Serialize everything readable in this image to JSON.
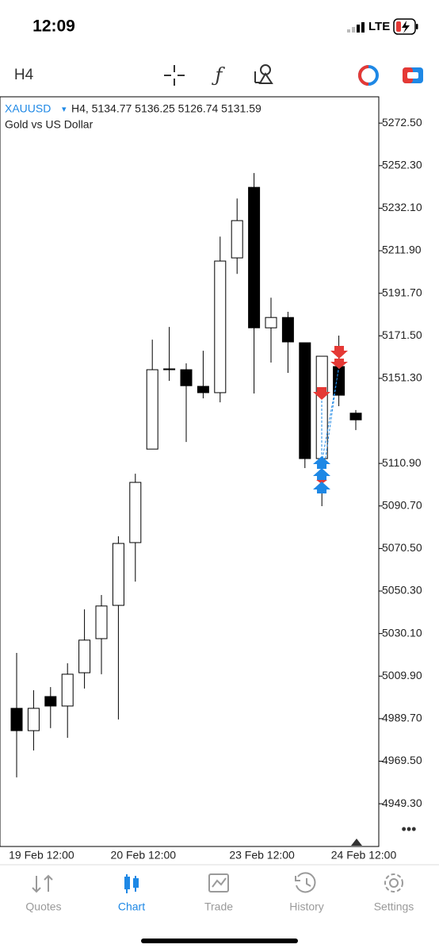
{
  "ui": {
    "status_time": "12:09",
    "network": "LTE",
    "timeframe": "H4",
    "symbol": "XAUUSD",
    "symbol_menu": "▾",
    "quote_line": "H4, 5134.77 5136.25 5126.74 5131.59",
    "description": "Gold vs US Dollar",
    "more": "•••",
    "tabs": [
      "Quotes",
      "Chart",
      "Trade",
      "History",
      "Settings"
    ],
    "active_tab": 1
  },
  "chart_data": {
    "type": "candlestick",
    "categories": [
      null,
      "19 Feb 12:00",
      null,
      null,
      null,
      null,
      null,
      "20 Feb 12:00",
      null,
      null,
      null,
      null,
      null,
      null,
      "23 Feb 12:00",
      null,
      null,
      null,
      null,
      null,
      "24 Feb 12:00"
    ],
    "open": [
      4994.6,
      4984.0,
      5000.2,
      4995.7,
      5011.5,
      5027.7,
      5043.5,
      5073.3,
      5117.7,
      5155.8,
      5155.4,
      5147.5,
      5144.5,
      5208.5,
      5242.0,
      5175.3,
      5180.2,
      5168.2,
      5113.2,
      5156.9,
      5134.77
    ],
    "high": [
      5020.9,
      5003.2,
      5004.7,
      5016.0,
      5041.6,
      5048.4,
      5076.3,
      5106.0,
      5169.7,
      5175.7,
      5158.4,
      5164.4,
      5218.6,
      5236.7,
      5248.8,
      5189.6,
      5182.9,
      5168.2,
      5161.8,
      5171.6,
      5136.25
    ],
    "low": [
      4961.8,
      4974.6,
      4985.2,
      4980.6,
      5004.0,
      5010.8,
      4989.3,
      5054.8,
      5117.7,
      5150.1,
      5121.1,
      5141.8,
      5139.9,
      5200.9,
      5144.1,
      5158.8,
      5153.9,
      5108.7,
      5090.6,
      5138.1,
      5126.74
    ],
    "close": [
      4984.0,
      4994.6,
      4995.7,
      5010.8,
      5027.0,
      5043.2,
      5072.9,
      5101.9,
      5155.4,
      5155.4,
      5147.8,
      5144.5,
      5207.0,
      5226.2,
      5175.3,
      5180.2,
      5168.6,
      5113.2,
      5161.8,
      5143.3,
      5131.59
    ],
    "up_color": "#ffffff",
    "down_color": "#000000",
    "ylim": [
      4929,
      5285
    ],
    "yticks": [
      {
        "value": 5272.5,
        "label": "5272.50"
      },
      {
        "value": 5252.3,
        "label": "5252.30"
      },
      {
        "value": 5232.1,
        "label": "5232.10"
      },
      {
        "value": 5211.9,
        "label": "5211.90"
      },
      {
        "value": 5191.7,
        "label": "5191.70"
      },
      {
        "value": 5171.5,
        "label": "5171.50"
      },
      {
        "value": 5151.3,
        "label": "5151.30"
      },
      {
        "value": 5110.9,
        "label": "5110.90"
      },
      {
        "value": 5090.7,
        "label": "5090.70"
      },
      {
        "value": 5070.5,
        "label": "5070.50"
      },
      {
        "value": 5050.3,
        "label": "5050.30"
      },
      {
        "value": 5030.1,
        "label": "5030.10"
      },
      {
        "value": 5009.9,
        "label": "5009.90"
      },
      {
        "value": 4989.7,
        "label": "4989.70"
      },
      {
        "value": 4969.5,
        "label": "4969.50"
      },
      {
        "value": 4949.3,
        "label": "4949.30"
      }
    ]
  }
}
